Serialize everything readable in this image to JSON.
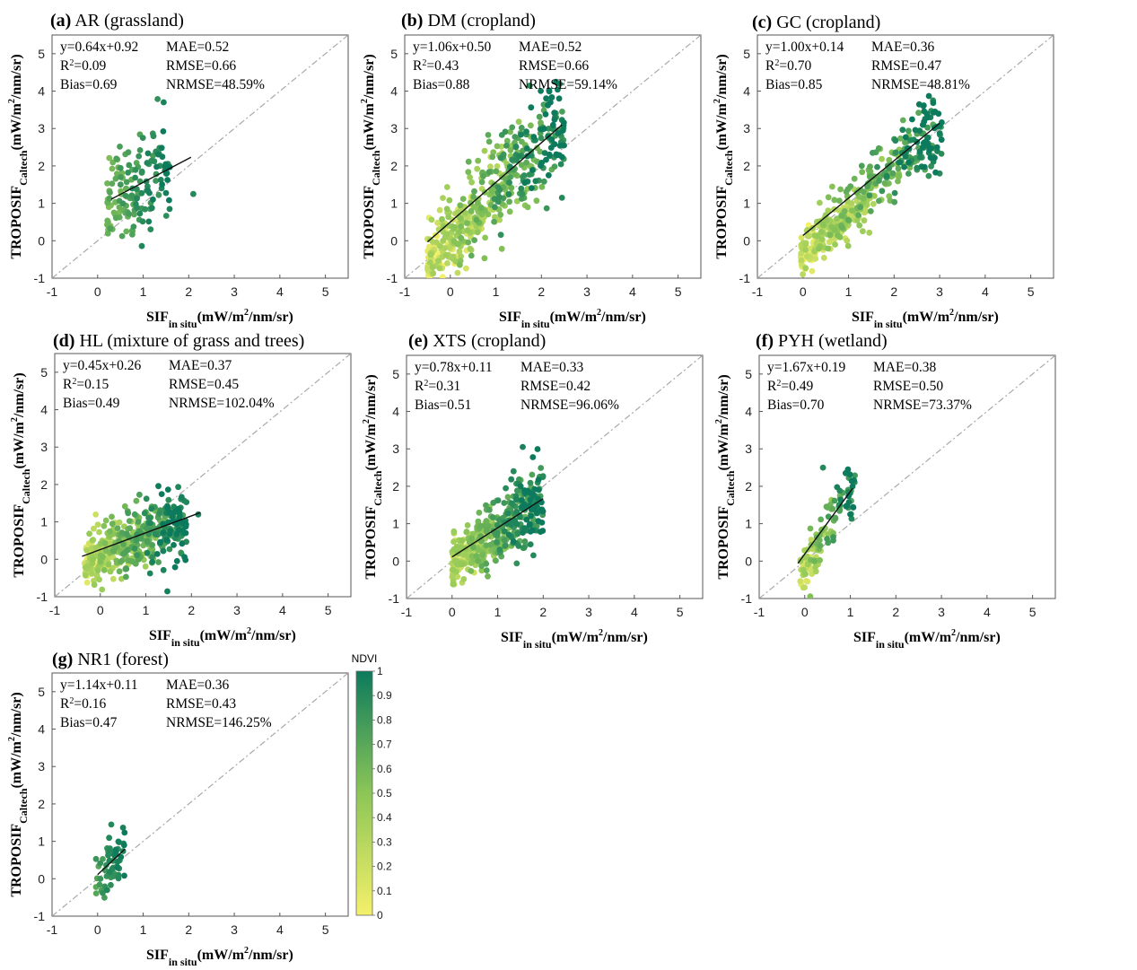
{
  "figure": {
    "x_axis_label": {
      "main": "SIF",
      "sub": "in situ",
      "unit": "(mW/m",
      "sup": "2",
      "unit_tail": "/nm/sr)"
    },
    "y_axis_label": {
      "main": "TROPOSIF",
      "sub": "Caltech",
      "unit": "(mW/m",
      "sup": "2",
      "unit_tail": "/nm/sr)"
    },
    "colorbar": {
      "title": "NDVI",
      "ticks": [
        "0",
        "0.1",
        "0.2",
        "0.3",
        "0.4",
        "0.5",
        "0.6",
        "0.7",
        "0.8",
        "0.9",
        "1"
      ],
      "color_low": "#f5f06a",
      "color_mid": "#8cc657",
      "color_high": "#0c7a5c"
    },
    "ref_line_color": "#a9a9a9",
    "fit_line_color": "#111111"
  },
  "chart_data": [
    {
      "type": "scatter",
      "panel": "(a)",
      "title": "AR (grassland)",
      "xlim": [
        -1,
        5.5
      ],
      "ylim": [
        -1,
        5.5
      ],
      "xticks": [
        "-1",
        "0",
        "1",
        "2",
        "3",
        "4",
        "5"
      ],
      "yticks": [
        "-1",
        "0",
        "1",
        "2",
        "3",
        "4",
        "5"
      ],
      "stats_left": [
        {
          "name": "y=0.64x+0.92"
        },
        {
          "name": "R",
          "sup": "2",
          "tail": "=0.09"
        },
        {
          "name": "Bias=0.69"
        }
      ],
      "stats_right": [
        "MAE=0.52",
        "RMSE=0.66",
        "NRMSE=48.59%"
      ],
      "fit": {
        "slope": 0.64,
        "intercept": 0.92,
        "x_range": [
          0.3,
          2.05
        ]
      },
      "cloud": {
        "n": 150,
        "x_range": [
          0.2,
          1.6
        ],
        "y_spread": 0.75,
        "ndvi_range": [
          0.55,
          1.0
        ],
        "seed": 11
      },
      "highlights": [
        {
          "x": 1.45,
          "y": 3.7,
          "ndvi": 0.95
        },
        {
          "x": 2.1,
          "y": 1.25,
          "ndvi": 0.9
        }
      ]
    },
    {
      "type": "scatter",
      "panel": "(b)",
      "title": "DM (cropland)",
      "xlim": [
        -1,
        5.5
      ],
      "ylim": [
        -1,
        5.5
      ],
      "xticks": [
        "-1",
        "0",
        "1",
        "2",
        "3",
        "4",
        "5"
      ],
      "yticks": [
        "-1",
        "0",
        "1",
        "2",
        "3",
        "4",
        "5"
      ],
      "stats_left": [
        {
          "name": "y=1.06x+0.50"
        },
        {
          "name": "R",
          "sup": "2",
          "tail": "=0.43"
        },
        {
          "name": "Bias=0.88"
        }
      ],
      "stats_right": [
        "MAE=0.52",
        "RMSE=0.66",
        "NRMSE=59.14%"
      ],
      "fit": {
        "slope": 1.06,
        "intercept": 0.5,
        "x_range": [
          -0.5,
          2.45
        ]
      },
      "cloud": {
        "n": 520,
        "x_range": [
          -0.5,
          2.5
        ],
        "y_spread": 0.75,
        "ndvi_range": [
          0.0,
          1.0
        ],
        "seed": 22
      },
      "highlights": [
        {
          "x": 2.45,
          "y": 1.15,
          "ndvi": 0.9
        },
        {
          "x": 2.3,
          "y": 3.3,
          "ndvi": 0.95
        }
      ]
    },
    {
      "type": "scatter",
      "panel": "(c)",
      "title": "GC (cropland)",
      "xlim": [
        -1,
        5.5
      ],
      "ylim": [
        -1,
        5.5
      ],
      "xticks": [
        "-1",
        "0",
        "1",
        "2",
        "3",
        "4",
        "5"
      ],
      "yticks": [
        "-1",
        "0",
        "1",
        "2",
        "3",
        "4",
        "5"
      ],
      "stats_left": [
        {
          "name": "y=1.00x+0.14"
        },
        {
          "name": "R",
          "sup": "2",
          "tail": "=0.70"
        },
        {
          "name": "Bias=0.85"
        }
      ],
      "stats_right": [
        "MAE=0.36",
        "RMSE=0.47",
        "NRMSE=48.81%"
      ],
      "fit": {
        "slope": 1.0,
        "intercept": 0.14,
        "x_range": [
          0.0,
          3.0
        ]
      },
      "cloud": {
        "n": 430,
        "x_range": [
          -0.05,
          3.05
        ],
        "y_spread": 0.45,
        "ndvi_range": [
          0.0,
          1.0
        ],
        "seed": 33
      },
      "highlights": [
        {
          "x": 2.8,
          "y": 3.3,
          "ndvi": 0.95
        },
        {
          "x": 3.0,
          "y": 1.8,
          "ndvi": 0.9
        }
      ]
    },
    {
      "type": "scatter",
      "panel": "(d)",
      "title": "HL (mixture of grass and trees)",
      "xlim": [
        -1,
        5.5
      ],
      "ylim": [
        -1,
        5.5
      ],
      "xticks": [
        "-1",
        "0",
        "1",
        "2",
        "3",
        "4",
        "5"
      ],
      "yticks": [
        "-1",
        "0",
        "1",
        "2",
        "3",
        "4",
        "5"
      ],
      "stats_left": [
        {
          "name": "y=0.45x+0.26"
        },
        {
          "name": "R",
          "sup": "2",
          "tail": "=0.15"
        },
        {
          "name": "Bias=0.49"
        }
      ],
      "stats_right": [
        "MAE=0.37",
        "RMSE=0.45",
        "NRMSE=102.04%"
      ],
      "fit": {
        "slope": 0.45,
        "intercept": 0.26,
        "x_range": [
          -0.4,
          2.2
        ]
      },
      "cloud": {
        "n": 520,
        "x_range": [
          -0.35,
          1.9
        ],
        "y_spread": 0.5,
        "ndvi_range": [
          0.05,
          1.0
        ],
        "seed": 44
      },
      "highlights": [
        {
          "x": 2.15,
          "y": 1.2,
          "ndvi": 0.95
        }
      ]
    },
    {
      "type": "scatter",
      "panel": "(e)",
      "title": "XTS (cropland)",
      "xlim": [
        -1,
        5.5
      ],
      "ylim": [
        -1,
        5.5
      ],
      "xticks": [
        "-1",
        "0",
        "1",
        "2",
        "3",
        "4",
        "5"
      ],
      "yticks": [
        "-1",
        "0",
        "1",
        "2",
        "3",
        "4",
        "5"
      ],
      "stats_left": [
        {
          "name": "y=0.78x+0.11"
        },
        {
          "name": "R",
          "sup": "2",
          "tail": "=0.31"
        },
        {
          "name": "Bias=0.51"
        }
      ],
      "stats_right": [
        "MAE=0.33",
        "RMSE=0.42",
        "NRMSE=96.06%"
      ],
      "fit": {
        "slope": 0.78,
        "intercept": 0.11,
        "x_range": [
          0.0,
          2.0
        ]
      },
      "cloud": {
        "n": 480,
        "x_range": [
          0.0,
          2.0
        ],
        "y_spread": 0.45,
        "ndvi_range": [
          0.1,
          1.0
        ],
        "seed": 55
      },
      "highlights": [
        {
          "x": 1.55,
          "y": 3.05,
          "ndvi": 0.95
        },
        {
          "x": 1.35,
          "y": 2.4,
          "ndvi": 0.9
        }
      ]
    },
    {
      "type": "scatter",
      "panel": "(f)",
      "title": "PYH (wetland)",
      "xlim": [
        -1,
        5.5
      ],
      "ylim": [
        -1,
        5.5
      ],
      "xticks": [
        "-1",
        "0",
        "1",
        "2",
        "3",
        "4",
        "5"
      ],
      "yticks": [
        "-1",
        "0",
        "1",
        "2",
        "3",
        "4",
        "5"
      ],
      "stats_left": [
        {
          "name": "y=1.67x+0.19"
        },
        {
          "name": "R",
          "sup": "2",
          "tail": "=0.49"
        },
        {
          "name": "Bias=0.70"
        }
      ],
      "stats_right": [
        "MAE=0.38",
        "RMSE=0.50",
        "NRMSE=73.37%"
      ],
      "fit": {
        "slope": 1.67,
        "intercept": 0.19,
        "x_range": [
          -0.15,
          1.05
        ]
      },
      "cloud": {
        "n": 120,
        "x_range": [
          -0.1,
          1.1
        ],
        "y_spread": 0.4,
        "ndvi_range": [
          0.1,
          1.0
        ],
        "seed": 66
      },
      "highlights": [
        {
          "x": 0.4,
          "y": 2.5,
          "ndvi": 0.9
        }
      ]
    },
    {
      "type": "scatter",
      "panel": "(g)",
      "title": "NR1 (forest)",
      "xlim": [
        -1,
        5.5
      ],
      "ylim": [
        -1,
        5.5
      ],
      "xticks": [
        "-1",
        "0",
        "1",
        "2",
        "3",
        "4",
        "5"
      ],
      "yticks": [
        "-1",
        "0",
        "1",
        "2",
        "3",
        "4",
        "5"
      ],
      "stats_left": [
        {
          "name": "y=1.14x+0.11"
        },
        {
          "name": "R",
          "sup": "2",
          "tail": "=0.16"
        },
        {
          "name": "Bias=0.47"
        }
      ],
      "stats_right": [
        "MAE=0.36",
        "RMSE=0.43",
        "NRMSE=146.25%"
      ],
      "fit": {
        "slope": 1.14,
        "intercept": 0.11,
        "x_range": [
          0.0,
          0.6
        ]
      },
      "cloud": {
        "n": 60,
        "x_range": [
          -0.05,
          0.6
        ],
        "y_spread": 0.35,
        "ndvi_range": [
          0.7,
          1.0
        ],
        "seed": 77
      },
      "highlights": [
        {
          "x": 0.3,
          "y": 1.45,
          "ndvi": 0.9
        }
      ]
    }
  ]
}
